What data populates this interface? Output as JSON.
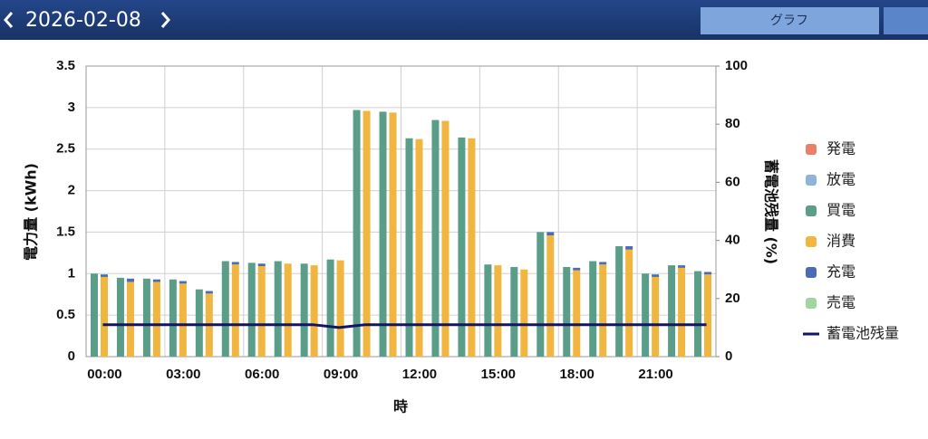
{
  "header": {
    "date": "2026-02-08",
    "tab": "グラフ"
  },
  "chart_data": {
    "type": "bar",
    "y_label": "電力量 (kWh)",
    "y2_label": "蓄電池残量 (%)",
    "x_label": "時",
    "categories": [
      "00:00",
      null,
      null,
      "03:00",
      null,
      null,
      "06:00",
      null,
      null,
      "09:00",
      null,
      null,
      "12:00",
      null,
      null,
      "15:00",
      null,
      null,
      "18:00",
      null,
      null,
      "21:00",
      null,
      null
    ],
    "series": [
      {
        "name": "発電",
        "color": "#e8806a",
        "values": [
          0,
          0,
          0,
          0,
          0,
          0,
          0,
          0,
          0,
          0,
          0,
          0,
          0,
          0,
          0,
          0,
          0,
          0,
          0,
          0,
          0,
          0,
          0,
          0
        ]
      },
      {
        "name": "放電",
        "color": "#8fb3d9",
        "values": [
          0,
          0,
          0,
          0,
          0,
          0,
          0,
          0,
          0,
          0,
          0,
          0,
          0,
          0,
          0,
          0,
          0,
          0,
          0,
          0,
          0,
          0,
          0,
          0
        ]
      },
      {
        "name": "買電",
        "color": "#5a9e8a",
        "values": [
          1.0,
          0.95,
          0.94,
          0.93,
          0.81,
          1.15,
          1.13,
          1.15,
          1.12,
          1.17,
          2.97,
          2.95,
          2.63,
          2.85,
          2.64,
          1.11,
          1.08,
          1.5,
          1.08,
          1.15,
          1.33,
          1.0,
          1.1,
          1.03
        ]
      },
      {
        "name": "消費",
        "color": "#f0b640",
        "values": [
          0.96,
          0.9,
          0.9,
          0.88,
          0.76,
          1.11,
          1.09,
          1.12,
          1.1,
          1.16,
          2.96,
          2.94,
          2.62,
          2.84,
          2.63,
          1.1,
          1.05,
          1.46,
          1.04,
          1.11,
          1.29,
          0.96,
          1.07,
          0.99
        ]
      },
      {
        "name": "充電",
        "color": "#4a6cb3",
        "values": [
          0.03,
          0.04,
          0.03,
          0.03,
          0.03,
          0.03,
          0.03,
          0,
          0,
          0,
          0,
          0,
          0,
          0,
          0,
          0,
          0,
          0.04,
          0.03,
          0.03,
          0.04,
          0.03,
          0.03,
          0.03
        ]
      },
      {
        "name": "売電",
        "color": "#9fd6a0",
        "values": [
          0,
          0,
          0,
          0,
          0,
          0,
          0,
          0,
          0,
          0,
          0,
          0,
          0,
          0,
          0,
          0,
          0,
          0,
          0,
          0,
          0,
          0,
          0,
          0
        ]
      },
      {
        "name": "蓄電池残量",
        "color": "#141464",
        "type": "line",
        "axis": "y2",
        "values": [
          11,
          11,
          11,
          11,
          11,
          11,
          11,
          11,
          11,
          10,
          11,
          11,
          11,
          11,
          11,
          11,
          11,
          11,
          11,
          11,
          11,
          11,
          11,
          11
        ]
      }
    ],
    "ylim": [
      0,
      3.5
    ],
    "yticks": [
      0,
      0.5,
      1,
      1.5,
      2,
      2.5,
      3,
      3.5
    ],
    "y2lim": [
      0,
      100
    ],
    "y2ticks": [
      0,
      20,
      40,
      60,
      80,
      100
    ],
    "grid": true,
    "legend": "right"
  }
}
